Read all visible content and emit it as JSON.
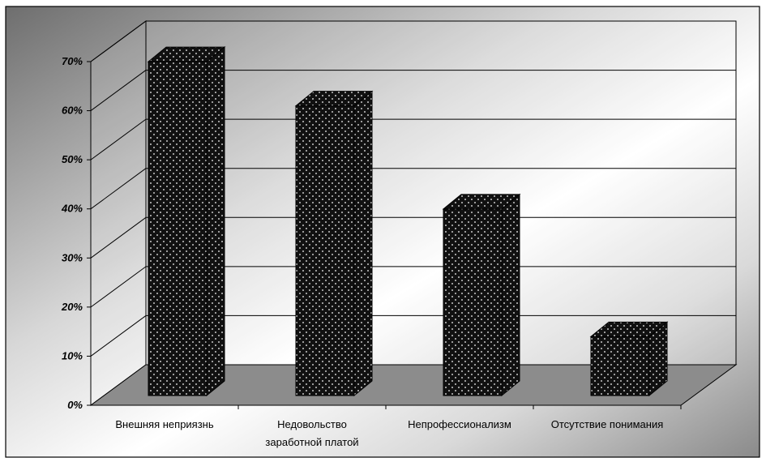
{
  "chart_data": {
    "type": "bar",
    "style": "3d-column",
    "categories": [
      "Внешняя неприязнь",
      "Недовольство заработной платой",
      "Непрофессионализм",
      "Отсутствие понимания"
    ],
    "category_lines": [
      [
        "Внешняя неприязнь"
      ],
      [
        "Недовольство",
        "заработной платой"
      ],
      [
        "Непрофессионализм"
      ],
      [
        "Отсутствие понимания"
      ]
    ],
    "values": [
      68,
      59,
      38,
      12
    ],
    "y_ticks": [
      "0%",
      "10%",
      "20%",
      "30%",
      "40%",
      "50%",
      "60%",
      "70%"
    ],
    "ylim": [
      0,
      70
    ],
    "y_unit": "%",
    "grid": true,
    "legend": "none",
    "bar_color": "#111111",
    "bar_pattern": "white dots",
    "background": "gradient gray to white"
  }
}
